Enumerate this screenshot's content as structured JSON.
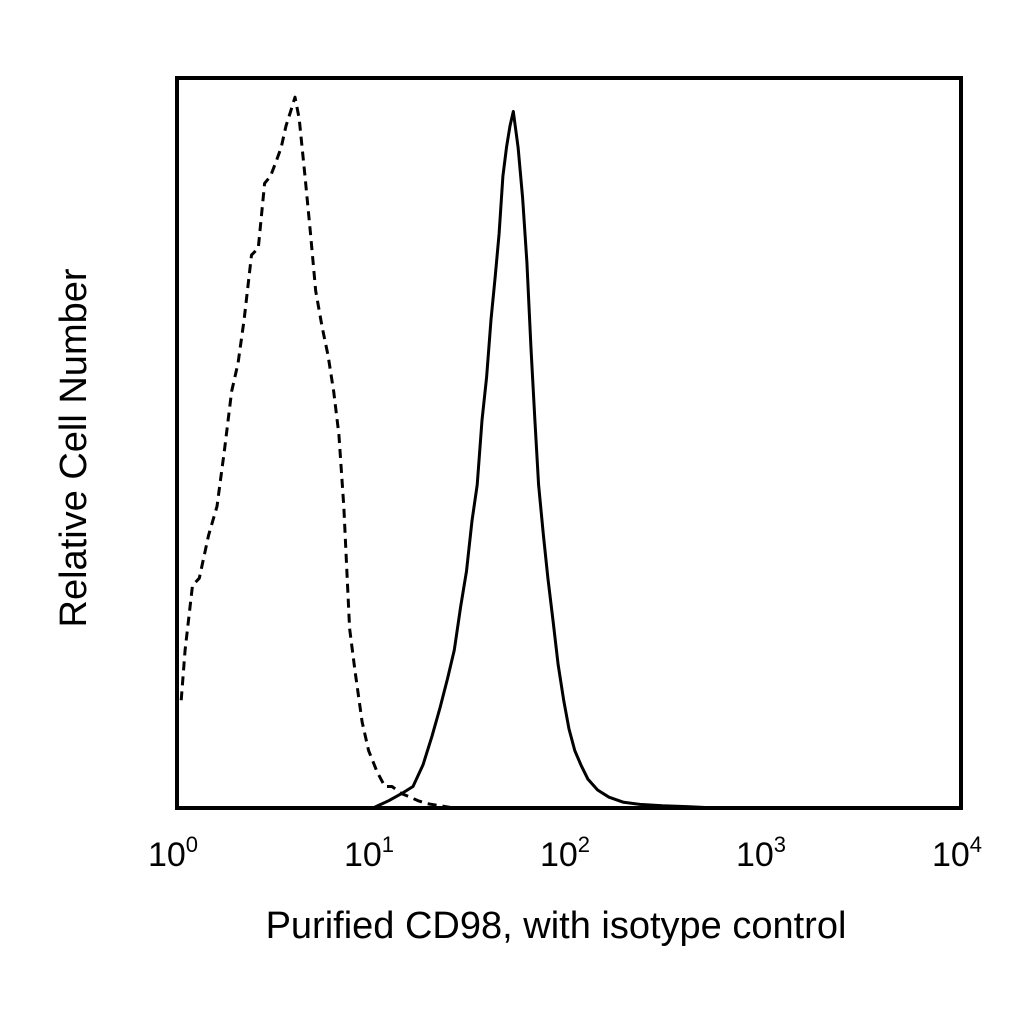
{
  "chart_data": {
    "type": "line",
    "title": "",
    "xlabel": "Purified CD98, with isotype control",
    "ylabel": "Relative Cell Number",
    "x_scale": "log",
    "xlim": [
      1,
      10000
    ],
    "ylim": [
      0,
      100
    ],
    "grid": false,
    "x_ticks": [
      {
        "value": 1,
        "base": "10",
        "exp": "0"
      },
      {
        "value": 10,
        "base": "10",
        "exp": "1"
      },
      {
        "value": 100,
        "base": "10",
        "exp": "2"
      },
      {
        "value": 1000,
        "base": "10",
        "exp": "3"
      },
      {
        "value": 10000,
        "base": "10",
        "exp": "4"
      }
    ],
    "series": [
      {
        "style": "dashed",
        "x": [
          1.05,
          1.1,
          1.2,
          1.3,
          1.45,
          1.6,
          1.75,
          1.9,
          2.05,
          2.2,
          2.4,
          2.6,
          2.8,
          3.0,
          3.2,
          3.4,
          3.6,
          3.8,
          4.0,
          4.2,
          4.5,
          4.8,
          5.1,
          5.5,
          5.9,
          6.3,
          6.7,
          7.1,
          7.6,
          8.1,
          8.8,
          9.5,
          10.5,
          11.5,
          12.5,
          14,
          15.5,
          17,
          19,
          22,
          26
        ],
        "y": [
          15,
          22,
          31,
          32,
          38,
          42,
          50,
          58,
          62,
          68,
          77,
          78,
          87,
          88,
          90,
          92,
          95,
          97,
          99,
          96,
          88,
          80,
          72,
          67,
          63,
          58,
          52,
          42,
          25,
          19,
          12,
          8,
          5,
          3,
          3,
          2,
          1.5,
          1,
          0.6,
          0.3,
          0
        ]
      },
      {
        "style": "solid",
        "x": [
          10,
          12,
          14,
          16,
          18,
          20,
          22,
          24,
          26,
          28,
          30,
          32,
          34,
          36,
          38,
          40,
          42,
          44,
          46,
          48,
          50,
          52,
          55,
          58,
          61,
          64,
          67,
          70,
          74,
          78,
          83,
          88,
          94,
          100,
          107,
          115,
          125,
          140,
          160,
          190,
          230,
          300,
          400,
          560
        ],
        "y": [
          0,
          1,
          2,
          3,
          6,
          10,
          14,
          18,
          22,
          28,
          33,
          40,
          45,
          54,
          60,
          68,
          74,
          80,
          88,
          92,
          95,
          97,
          92,
          85,
          76,
          64,
          54,
          45,
          38,
          32,
          26,
          20,
          15,
          11,
          8,
          6,
          4,
          2.5,
          1.5,
          0.8,
          0.5,
          0.3,
          0.2,
          0
        ]
      }
    ]
  }
}
